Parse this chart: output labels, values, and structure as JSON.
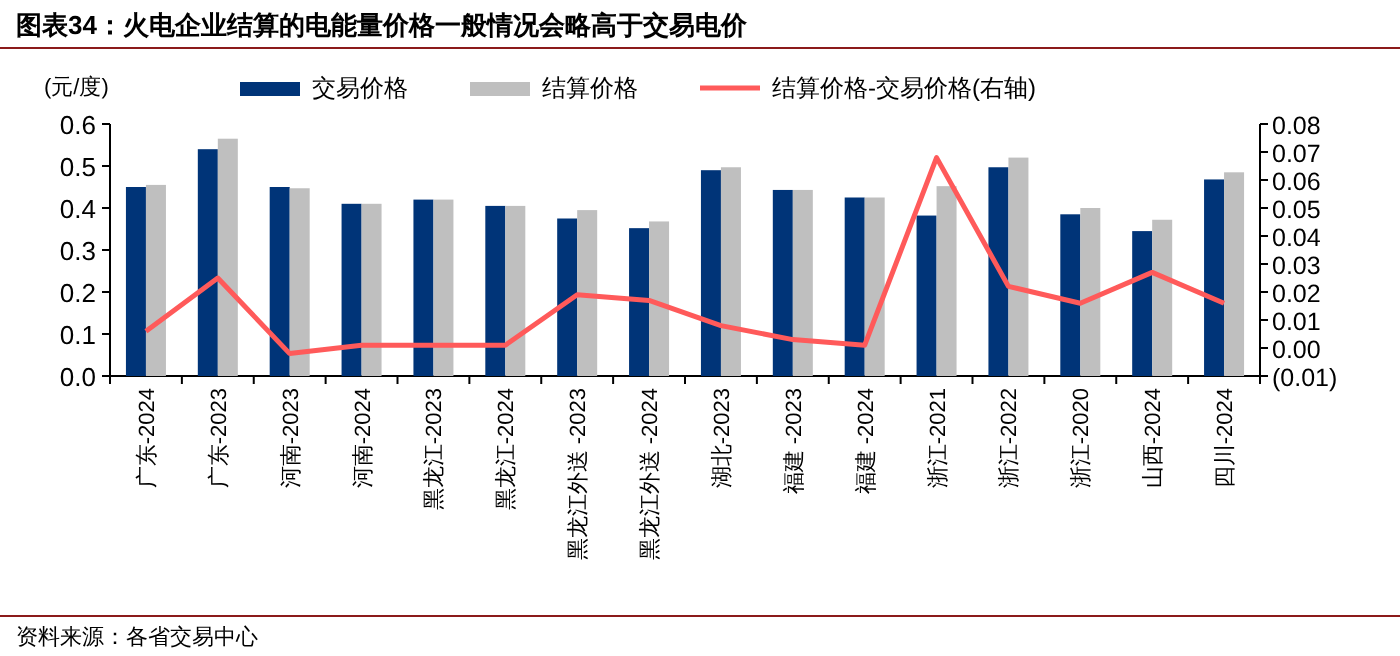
{
  "chart_data": {
    "type": "bar",
    "title": "图表34：火电企业结算的电能量价格一般情况会略高于交易电价",
    "ylabel": "(元/度)",
    "categories": [
      "广东-2024",
      "广东-2023",
      "河南-2023",
      "河南-2024",
      "黑龙江-2023",
      "黑龙江-2024",
      "黑龙江外送 -2023",
      "黑龙江外送 -2024",
      "湖北-2023",
      "福建 -2023",
      "福建 -2024",
      "浙江-2021",
      "浙江-2022",
      "浙江-2020",
      "山西-2024",
      "四川-2024"
    ],
    "series": [
      {
        "name": "交易价格",
        "color": "#003478",
        "values": [
          0.45,
          0.54,
          0.45,
          0.41,
          0.42,
          0.405,
          0.375,
          0.352,
          0.49,
          0.443,
          0.425,
          0.382,
          0.497,
          0.385,
          0.345,
          0.468
        ]
      },
      {
        "name": "结算价格",
        "color": "#bfbfbf",
        "values": [
          0.455,
          0.565,
          0.447,
          0.41,
          0.42,
          0.405,
          0.395,
          0.368,
          0.497,
          0.443,
          0.425,
          0.452,
          0.52,
          0.4,
          0.372,
          0.485
        ]
      },
      {
        "name": "结算价格-交易价格(右轴)",
        "color": "#ff5a5a",
        "type": "line",
        "axis": "y2",
        "values": [
          0.006,
          0.025,
          -0.002,
          0.001,
          0.001,
          0.001,
          0.019,
          0.017,
          0.008,
          0.003,
          0.001,
          0.068,
          0.022,
          0.016,
          0.027,
          0.016
        ]
      }
    ],
    "ylim": [
      0,
      0.6
    ],
    "yticks": [
      {
        "value": 0,
        "label": "0.0"
      },
      0.1,
      0.2,
      0.3,
      0.4,
      0.5,
      0.6
    ],
    "y2lim": [
      -0.01,
      0.08
    ],
    "y2ticks": [
      {
        "value": -0.01,
        "label": "(0.01)"
      },
      {
        "value": 0,
        "label": "0.00"
      },
      0.01,
      0.02,
      0.03,
      0.04,
      0.05,
      0.06,
      0.07,
      0.08
    ],
    "legend": "top",
    "annotations": [
      "资料来源：各省交易中心"
    ]
  }
}
